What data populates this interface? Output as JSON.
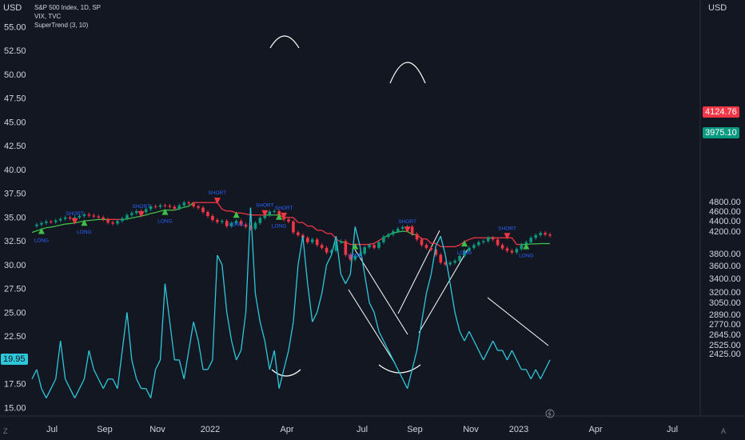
{
  "header": {
    "left_currency": "USD",
    "right_currency": "USD",
    "symbol_line": "S&P 500 Index, 1D, SP",
    "vix_line": "VIX, TVC",
    "supertrend_line": "SuperTrend (3, 10)"
  },
  "price_tags": {
    "spx_last": "4124.76",
    "supertrend_last": "3975.10",
    "vix_last": "19.95",
    "spx_color": "#f23645",
    "supertrend_color": "#089981",
    "vix_color": "#2ec7d9"
  },
  "footer": {
    "left_icon": "Z",
    "right_icon": "A"
  },
  "chart_data": {
    "type": "line",
    "x_tick_labels": [
      "Jul",
      "Sep",
      "Nov",
      "2022",
      "Apr",
      "Jul",
      "Sep",
      "Nov",
      "2023",
      "Apr",
      "Jul"
    ],
    "left_axis": {
      "labels": [
        "55.00",
        "52.50",
        "50.00",
        "47.50",
        "45.00",
        "42.50",
        "40.00",
        "37.50",
        "35.00",
        "32.50",
        "30.00",
        "27.50",
        "25.00",
        "22.50",
        "17.50",
        "15.00"
      ],
      "range": [
        14.2,
        56.2
      ]
    },
    "right_axis": {
      "labels": [
        "4800.00",
        "4600.00",
        "4400.00",
        "4200.00",
        "3800.00",
        "3600.00",
        "3400.00",
        "3200.00",
        "3050.00",
        "2890.00",
        "2770.00",
        "2645.00",
        "2525.00",
        "2425.00"
      ],
      "log_scale": true
    },
    "series": [
      {
        "name": "S&P 500 Index",
        "axis": "right",
        "values": [
          4300,
          4330,
          4360,
          4390,
          4380,
          4410,
          4440,
          4470,
          4450,
          4470,
          4500,
          4530,
          4510,
          4490,
          4470,
          4430,
          4370,
          4350,
          4400,
          4450,
          4520,
          4560,
          4600,
          4580,
          4640,
          4700,
          4690,
          4720,
          4710,
          4690,
          4650,
          4720,
          4780,
          4760,
          4700,
          4670,
          4580,
          4500,
          4420,
          4380,
          4400,
          4300,
          4360,
          4400,
          4330,
          4290,
          4250,
          4360,
          4460,
          4520,
          4590,
          4600,
          4480,
          4430,
          4390,
          4180,
          4130,
          4080,
          4000,
          4050,
          3950,
          3900,
          3820,
          3850,
          4000,
          4020,
          3780,
          3700,
          3760,
          3800,
          3910,
          3950,
          3900,
          4000,
          4100,
          4140,
          4200,
          4250,
          4280,
          4290,
          4150,
          4050,
          3950,
          3900,
          3870,
          3780,
          3650,
          3620,
          3650,
          3680,
          3760,
          3850,
          3900,
          3950,
          4000,
          4020,
          4080,
          4050,
          3950,
          3890,
          3850,
          3820,
          3880,
          3960,
          4000,
          4080,
          4130,
          4170,
          4140,
          4120
        ],
        "color_up": "#089981",
        "color_down": "#f23645"
      },
      {
        "name": "VIX",
        "axis": "left",
        "values": [
          18,
          19,
          17,
          16,
          17,
          18,
          22,
          18,
          17,
          16,
          17,
          18,
          21,
          19,
          18,
          17,
          18,
          18,
          17,
          21,
          25,
          20,
          18,
          17,
          17,
          16,
          19,
          20,
          28,
          24,
          20,
          20,
          18,
          21,
          24,
          22,
          19,
          19,
          20,
          31,
          30,
          25,
          22,
          20,
          21,
          25,
          36,
          27,
          24,
          22,
          19,
          21,
          17,
          19,
          21,
          24,
          30,
          33,
          28,
          24,
          25,
          27,
          30,
          31,
          33,
          29,
          28,
          29,
          34,
          32,
          29,
          26,
          25,
          23,
          22,
          21,
          20,
          19,
          18,
          17,
          19,
          21,
          24,
          27,
          29,
          32,
          33,
          31,
          28,
          25,
          23,
          22,
          23,
          22,
          21,
          20,
          21,
          22,
          21,
          21,
          20,
          21,
          20,
          19,
          19,
          18,
          19,
          18,
          19,
          20
        ],
        "color": "#2ec7d9"
      },
      {
        "name": "SuperTrend (3, 10)",
        "axis": "right",
        "values": [
          4180,
          4210,
          4240,
          4270,
          4280,
          4300,
          4320,
          4340,
          4350,
          4360,
          4380,
          4400,
          4410,
          4420,
          4430,
          4430,
          4430,
          4430,
          4430,
          4430,
          4440,
          4460,
          4480,
          4500,
          4520,
          4550,
          4570,
          4600,
          4620,
          4620,
          4620,
          4650,
          4680,
          4700,
          4780,
          4780,
          4780,
          4780,
          4780,
          4780,
          4640,
          4600,
          4600,
          4560,
          4560,
          4540,
          4520,
          4520,
          4520,
          4520,
          4520,
          4520,
          4520,
          4470,
          4470,
          4470,
          4370,
          4370,
          4300,
          4300,
          4220,
          4220,
          4160,
          4160,
          4060,
          4000,
          4000,
          3960,
          3960,
          3960,
          3960,
          3960,
          3980,
          4030,
          4080,
          4130,
          4170,
          4190,
          4200,
          4200,
          4140,
          4140,
          4060,
          4060,
          3980,
          3980,
          3920,
          3920,
          3920,
          3920,
          3950,
          4010,
          4050,
          4080,
          4080,
          4080,
          4080,
          4080,
          4080,
          4080,
          4080,
          4080,
          3960,
          3960,
          3960,
          3970,
          3970,
          3975,
          3975,
          3975
        ],
        "color_up": "#3fbf4a",
        "color_down": "#f23645"
      }
    ],
    "annotations": [
      {
        "type": "signal",
        "direction": "long",
        "label": "LONG",
        "index": 2
      },
      {
        "type": "signal",
        "direction": "short",
        "label": "SHORT",
        "index": 9
      },
      {
        "type": "signal",
        "direction": "long",
        "label": "LONG",
        "index": 11
      },
      {
        "type": "signal",
        "direction": "short",
        "label": "SHORT",
        "index": 23
      },
      {
        "type": "signal",
        "direction": "long",
        "label": "LONG",
        "index": 28
      },
      {
        "type": "signal",
        "direction": "short",
        "label": "SHORT",
        "index": 39
      },
      {
        "type": "signal",
        "direction": "long",
        "label": "LONG",
        "index": 43
      },
      {
        "type": "signal",
        "direction": "short",
        "label": "SHORT",
        "index": 49
      },
      {
        "type": "signal",
        "direction": "long",
        "label": "LONG",
        "index": 52
      },
      {
        "type": "signal",
        "direction": "short",
        "label": "SHORT",
        "index": 53
      },
      {
        "type": "signal",
        "direction": "long",
        "label": "LONG",
        "index": 68
      },
      {
        "type": "signal",
        "direction": "short",
        "label": "SHORT",
        "index": 79
      },
      {
        "type": "signal",
        "direction": "long",
        "label": "LONG",
        "index": 91
      },
      {
        "type": "signal",
        "direction": "short",
        "label": "SHORT",
        "index": 100
      },
      {
        "type": "signal",
        "direction": "long",
        "label": "LONG",
        "index": 104
      }
    ]
  }
}
